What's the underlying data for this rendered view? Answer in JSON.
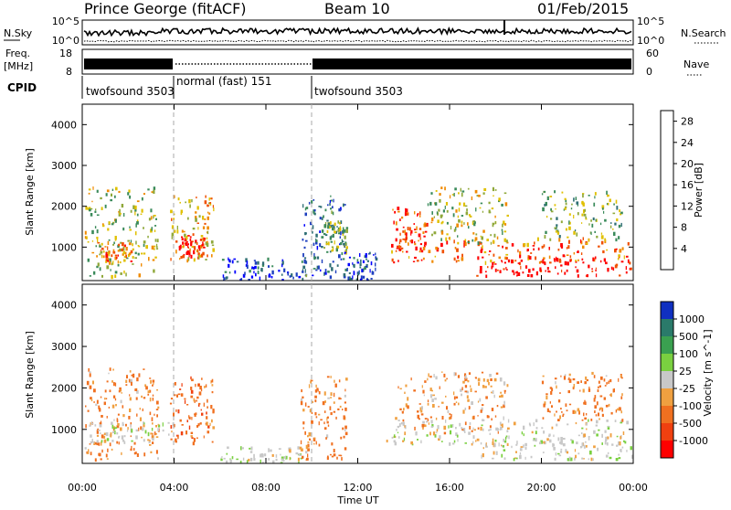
{
  "header": {
    "station": "Prince George (fitACF)",
    "beam": "Beam 10",
    "date": "01/Feb/2015"
  },
  "nsky_panel": {
    "left_label": "N.Sky",
    "right_label": "N.Search",
    "left_ticks": [
      "10^5",
      "10^0"
    ],
    "right_ticks": [
      "10^5",
      "10^0"
    ]
  },
  "freq_panel": {
    "left_label_1": "Freq.",
    "left_label_2": "[MHz]",
    "right_label": "Nave",
    "left_ticks": [
      "18",
      "8"
    ],
    "right_ticks": [
      "60",
      "0"
    ]
  },
  "cpid": {
    "label": "CPID",
    "segments": [
      {
        "name": "twofsound 3503",
        "start_hour": 0,
        "end_hour": 4
      },
      {
        "name": "normal (fast) 151",
        "start_hour": 4,
        "end_hour": 10
      },
      {
        "name": "twofsound 3503",
        "start_hour": 10,
        "end_hour": 24
      }
    ]
  },
  "chart_data": [
    {
      "type": "heatmap",
      "panel": "power",
      "ylabel": "Slant Range [km]",
      "xlabel": "Time UT",
      "xlim": [
        0,
        24
      ],
      "ylim": [
        180,
        4500
      ],
      "xticks": [
        "00:00",
        "04:00",
        "08:00",
        "12:00",
        "16:00",
        "20:00",
        "00:00"
      ],
      "yticks": [
        1000,
        2000,
        3000,
        4000
      ],
      "colorbar": {
        "label": "Power [dB]",
        "ticks": [
          28,
          24,
          20,
          16,
          12,
          8,
          4
        ],
        "range": [
          0,
          30
        ],
        "colors": [
          "#0000ff",
          "#1e3fbe",
          "#2e6e74",
          "#3a8a5a",
          "#8fa83a",
          "#e0c000",
          "#f08a00",
          "#f05000",
          "#ff0000"
        ]
      },
      "clusters": [
        {
          "t0": 0.1,
          "t1": 3.3,
          "r0": 300,
          "r1": 2500,
          "power": 16
        },
        {
          "t0": 0.5,
          "t1": 2.2,
          "r0": 650,
          "r1": 1150,
          "power": 22
        },
        {
          "t0": 3.8,
          "t1": 5.7,
          "r0": 700,
          "r1": 2300,
          "power": 20
        },
        {
          "t0": 4.2,
          "t1": 5.3,
          "r0": 750,
          "r1": 1300,
          "power": 28
        },
        {
          "t0": 6.0,
          "t1": 9.8,
          "r0": 200,
          "r1": 750,
          "power": 6
        },
        {
          "t0": 9.5,
          "t1": 11.5,
          "r0": 300,
          "r1": 2300,
          "power": 8
        },
        {
          "t0": 10.5,
          "t1": 11.5,
          "r0": 900,
          "r1": 1700,
          "power": 14
        },
        {
          "t0": 11.3,
          "t1": 12.8,
          "r0": 200,
          "r1": 900,
          "power": 5
        },
        {
          "t0": 13.2,
          "t1": 24.0,
          "r0": 650,
          "r1": 1250,
          "power": 24
        },
        {
          "t0": 13.5,
          "t1": 15.0,
          "r0": 900,
          "r1": 2000,
          "power": 26
        },
        {
          "t0": 15.0,
          "t1": 18.5,
          "r0": 1100,
          "r1": 2500,
          "power": 16
        },
        {
          "t0": 17.0,
          "t1": 24.0,
          "r0": 300,
          "r1": 800,
          "power": 29
        },
        {
          "t0": 20.0,
          "t1": 23.5,
          "r0": 1200,
          "r1": 2400,
          "power": 14
        }
      ]
    },
    {
      "type": "heatmap",
      "panel": "velocity",
      "ylabel": "Slant Range [km]",
      "xlabel": "Time UT",
      "xlim": [
        0,
        24
      ],
      "ylim": [
        180,
        4500
      ],
      "xticks": [
        "00:00",
        "04:00",
        "08:00",
        "12:00",
        "16:00",
        "20:00",
        "00:00"
      ],
      "yticks": [
        1000,
        2000,
        3000,
        4000
      ],
      "colorbar": {
        "label": "Velocity [m s^-1]",
        "ticks": [
          "1000",
          "500",
          "100",
          "25",
          "-25",
          "-100",
          "-500",
          "-1000"
        ],
        "colors": [
          "#1030c0",
          "#2a7a6a",
          "#3aa050",
          "#7ad040",
          "#c8c8c8",
          "#f0a040",
          "#f07020",
          "#f04010",
          "#ff0000"
        ]
      },
      "clusters": [
        {
          "t0": 0.1,
          "t1": 3.3,
          "r0": 300,
          "r1": 2500,
          "velocity": -150
        },
        {
          "t0": 0.3,
          "t1": 4.0,
          "r0": 700,
          "r1": 1200,
          "velocity": 0
        },
        {
          "t0": 3.8,
          "t1": 5.7,
          "r0": 700,
          "r1": 2300,
          "velocity": -300
        },
        {
          "t0": 6.0,
          "t1": 9.8,
          "r0": 200,
          "r1": 600,
          "velocity": 0
        },
        {
          "t0": 9.5,
          "t1": 11.5,
          "r0": 300,
          "r1": 2300,
          "velocity": -150
        },
        {
          "t0": 13.2,
          "t1": 24.0,
          "r0": 650,
          "r1": 1250,
          "velocity": 0
        },
        {
          "t0": 13.5,
          "t1": 18.5,
          "r0": 900,
          "r1": 2400,
          "velocity": -80
        },
        {
          "t0": 17.0,
          "t1": 24.0,
          "r0": 300,
          "r1": 800,
          "velocity": 0
        },
        {
          "t0": 20.0,
          "t1": 23.5,
          "r0": 1200,
          "r1": 2400,
          "velocity": -200
        }
      ]
    }
  ]
}
